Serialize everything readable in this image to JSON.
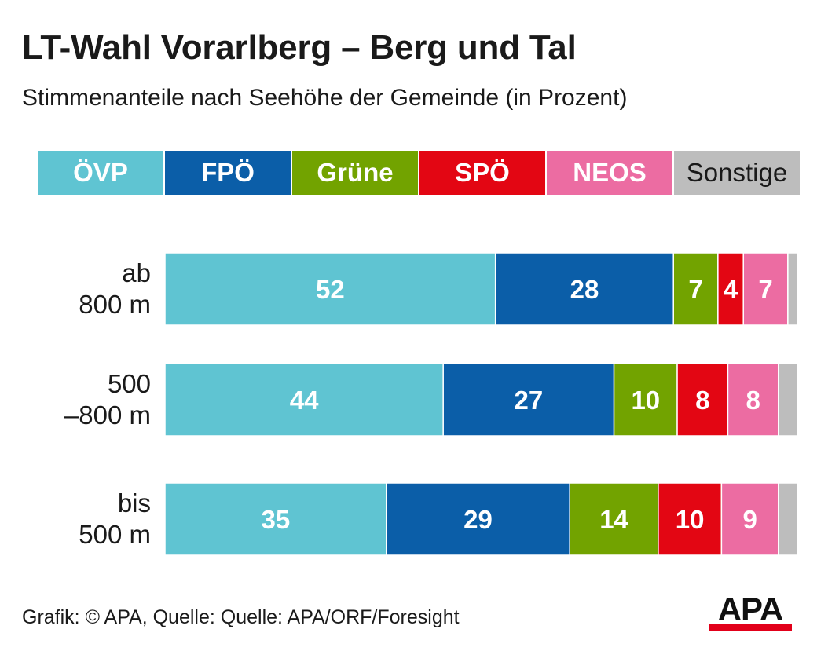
{
  "title": "LT-Wahl Vorarlberg – Berg und Tal",
  "subtitle": "Stimmenanteile nach Seehöhe der Gemeinde (in Prozent)",
  "footer": "Grafik: © APA, Quelle: Quelle: APA/ORF/Foresight",
  "logo": "APA",
  "chart_data": {
    "type": "bar",
    "orientation": "horizontal",
    "stacked": true,
    "categories": [
      {
        "line1": "ab",
        "line2": "800 m"
      },
      {
        "line1": "500",
        "line2": "–800 m"
      },
      {
        "line1": "bis",
        "line2": "500 m"
      }
    ],
    "series": [
      {
        "name": "ÖVP",
        "color": "#5fc4d2",
        "values": [
          52,
          44,
          35
        ]
      },
      {
        "name": "FPÖ",
        "color": "#0b5ea8",
        "values": [
          28,
          27,
          29
        ]
      },
      {
        "name": "Grüne",
        "color": "#72a300",
        "values": [
          7,
          10,
          14
        ]
      },
      {
        "name": "SPÖ",
        "color": "#e30613",
        "values": [
          4,
          8,
          10
        ]
      },
      {
        "name": "NEOS",
        "color": "#ec6ca2",
        "values": [
          7,
          8,
          9
        ]
      },
      {
        "name": "Sonstige",
        "color": "#bdbdbd",
        "values": [
          1.5,
          3,
          3
        ]
      }
    ],
    "show_value_labels_for": [
      "ÖVP",
      "FPÖ",
      "Grüne",
      "SPÖ",
      "NEOS"
    ],
    "xlim": [
      0,
      100
    ],
    "grid": false,
    "legend_position": "top"
  }
}
